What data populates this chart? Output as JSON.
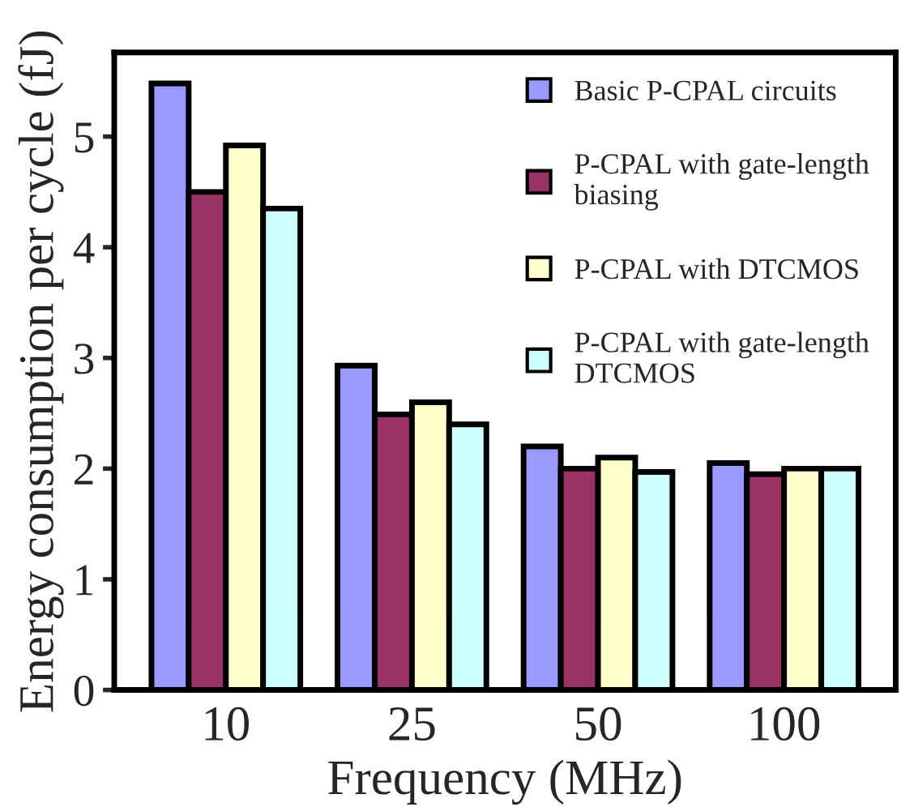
{
  "chart_data": {
    "type": "bar",
    "xlabel": "Frequency (MHz)",
    "ylabel": "Energy consumption per cycle (fJ)",
    "categories": [
      "10",
      "25",
      "50",
      "100"
    ],
    "series": [
      {
        "name": "Basic P-CPAL circuits",
        "color": "#9999ff",
        "values": [
          5.48,
          2.93,
          2.2,
          2.05
        ]
      },
      {
        "name": "P-CPAL with gate-length\nbiasing",
        "color": "#993366",
        "values": [
          4.5,
          2.49,
          2.0,
          1.95
        ]
      },
      {
        "name": "P-CPAL with DTCMOS",
        "color": "#ffffcc",
        "values": [
          4.92,
          2.6,
          2.1,
          2.0
        ]
      },
      {
        "name": "P-CPAL with gate-length\nDTCMOS",
        "color": "#ccffff",
        "values": [
          4.35,
          2.4,
          1.97,
          2.0
        ]
      }
    ],
    "ylim": [
      0,
      5.76
    ],
    "yticks": [
      0,
      1,
      2,
      3,
      4,
      5
    ],
    "grid": false,
    "legend": "top right"
  }
}
